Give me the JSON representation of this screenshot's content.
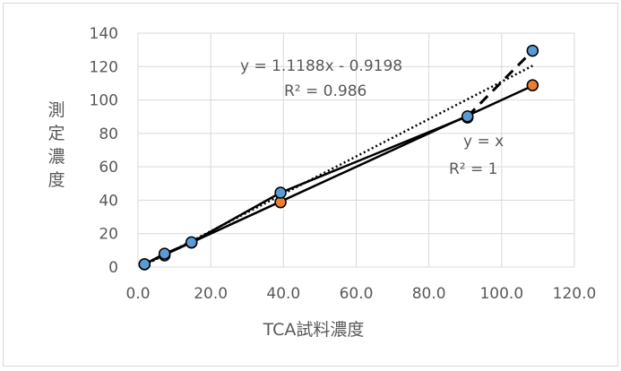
{
  "chart_data": {
    "type": "scatter",
    "xlabel": "TCA試料濃度",
    "ylabel": "測定濃度",
    "xlim": [
      0,
      120
    ],
    "ylim": [
      0,
      140
    ],
    "x_ticks": [
      "0.0",
      "20.0",
      "40.0",
      "60.0",
      "80.0",
      "100.0",
      "120.0"
    ],
    "y_ticks": [
      "0",
      "20",
      "40",
      "60",
      "80",
      "100",
      "120",
      "140"
    ],
    "grid": true,
    "series": [
      {
        "color": "#5b9bd5",
        "marker": "circle",
        "connect": "solid",
        "points": [
          {
            "x": 1.8,
            "y": 1.7
          },
          {
            "x": 7.3,
            "y": 8.0
          },
          {
            "x": 14.7,
            "y": 14.8
          },
          {
            "x": 39.2,
            "y": 44.5
          },
          {
            "x": 90.6,
            "y": 90.2
          },
          {
            "x": 108.5,
            "y": 129.5
          }
        ]
      },
      {
        "color": "#ed7d31",
        "marker": "circle",
        "connect": "none",
        "points": [
          {
            "x": 1.8,
            "y": 1.6
          },
          {
            "x": 7.3,
            "y": 7.0
          },
          {
            "x": 14.7,
            "y": 14.6
          },
          {
            "x": 39.2,
            "y": 38.8
          },
          {
            "x": 90.6,
            "y": 89.5
          },
          {
            "x": 108.5,
            "y": 108.8
          }
        ]
      }
    ],
    "trendlines": [
      {
        "slope": 1.1188,
        "intercept": -0.9198,
        "style": "dotted",
        "x_range": [
          1.8,
          108.5
        ]
      },
      {
        "slope": 1.0,
        "intercept": 0.0,
        "style": "solid",
        "x_range": [
          1.8,
          108.5
        ]
      }
    ],
    "annotations": [
      {
        "id": "eq1",
        "text": "y = 1.1188x - 0.9198"
      },
      {
        "id": "r1",
        "text": "R² = 0.986"
      },
      {
        "id": "eq2",
        "text": "y = x"
      },
      {
        "id": "r2",
        "text": "R² = 1"
      }
    ]
  }
}
